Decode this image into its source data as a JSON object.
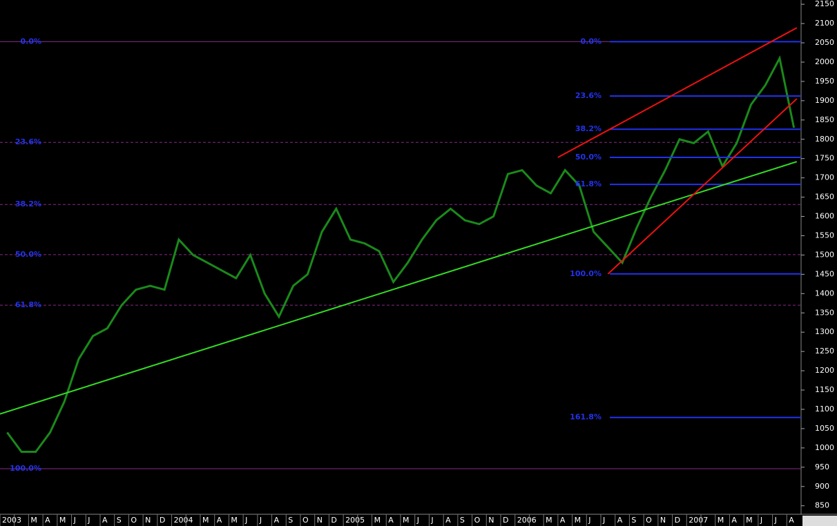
{
  "chart_data": {
    "type": "line",
    "categories": [
      "2003",
      null,
      "M",
      "A",
      "M",
      "J",
      "J",
      "A",
      "S",
      "O",
      "N",
      "D",
      "2004",
      null,
      "M",
      "A",
      "M",
      "J",
      "J",
      "A",
      "S",
      "O",
      "N",
      "D",
      "2005",
      null,
      "M",
      "A",
      "M",
      "J",
      "J",
      "A",
      "S",
      "O",
      "N",
      "D",
      "2006",
      null,
      "M",
      "A",
      "M",
      "J",
      "J",
      "A",
      "S",
      "O",
      "N",
      "D",
      "2007",
      null,
      "M",
      "A",
      "M",
      "J",
      "J",
      "A"
    ],
    "values": [
      1040,
      990,
      990,
      1040,
      1120,
      1230,
      1290,
      1310,
      1370,
      1410,
      1420,
      1410,
      1540,
      1500,
      1480,
      1460,
      1440,
      1500,
      1400,
      1340,
      1420,
      1450,
      1560,
      1620,
      1540,
      1530,
      1510,
      1430,
      1480,
      1540,
      1590,
      1620,
      1590,
      1580,
      1600,
      1710,
      1720,
      1680,
      1660,
      1720,
      1680,
      1560,
      1520,
      1480,
      1570,
      1650,
      1720,
      1800,
      1790,
      1820,
      1730,
      1790,
      1890,
      1940,
      2010,
      1830
    ],
    "color": "#1a8a1a",
    "ylim": [
      828,
      2161
    ],
    "yticks": [
      850,
      900,
      950,
      1000,
      1050,
      1100,
      1150,
      1200,
      1250,
      1300,
      1350,
      1400,
      1450,
      1500,
      1550,
      1600,
      1650,
      1700,
      1750,
      1800,
      1850,
      1900,
      1950,
      2000,
      2050,
      2100,
      2150
    ],
    "fib_left": [
      {
        "value": 2053,
        "label": "0.0%"
      },
      {
        "value": 1792,
        "label": "23.6%"
      },
      {
        "value": 1631,
        "label": "38.2%"
      },
      {
        "value": 1501,
        "label": "50.0%"
      },
      {
        "value": 1370,
        "label": "61.8%"
      },
      {
        "value": 946,
        "label": "100.0%"
      }
    ],
    "fib_right": [
      {
        "value": 2053,
        "label": "0.0%"
      },
      {
        "value": 1912,
        "label": "23.6%"
      },
      {
        "value": 1826,
        "label": "38.2%"
      },
      {
        "value": 1753,
        "label": "50.0%"
      },
      {
        "value": 1683,
        "label": "61.8%"
      },
      {
        "value": 1451,
        "label": "100.0%"
      },
      {
        "value": 1079,
        "label": "161.8%"
      }
    ],
    "trendlines": [
      {
        "color": "#33dd22",
        "x": [
          0,
          55.7
        ],
        "values": [
          1088,
          1742
        ]
      },
      {
        "color": "#ee1111",
        "x": [
          39,
          55.7
        ],
        "values": [
          1753,
          2089
        ]
      },
      {
        "color": "#ee1111",
        "x": [
          42.5,
          55.7
        ],
        "values": [
          1451,
          1905
        ]
      }
    ]
  }
}
